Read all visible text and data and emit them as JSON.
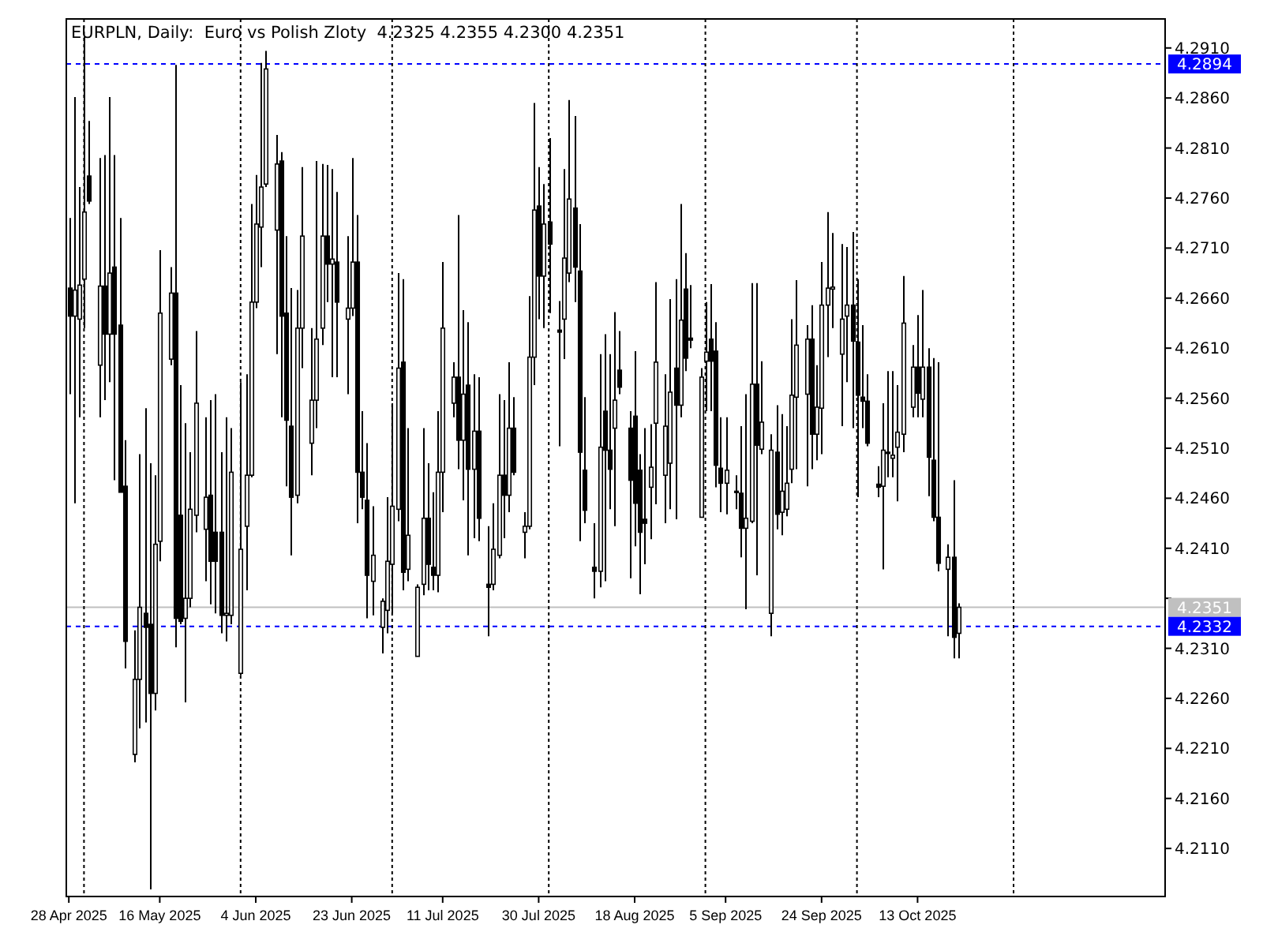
{
  "chart_data": {
    "type": "candlestick",
    "title": "EURPLN, Daily:  Euro vs Polish Zloty  4.2325 4.2355 4.2300 4.2351",
    "x": [
      "2025-04-28",
      "2025-04-29",
      "2025-04-30",
      "2025-05-01",
      "2025-05-02",
      "2025-05-04",
      "2025-05-05",
      "2025-05-06",
      "2025-05-07",
      "2025-05-08",
      "2025-05-09",
      "2025-05-11",
      "2025-05-12",
      "2025-05-13",
      "2025-05-14",
      "2025-05-15",
      "2025-05-16",
      "2025-05-18",
      "2025-05-19",
      "2025-05-20",
      "2025-05-21",
      "2025-05-22",
      "2025-05-23",
      "2025-05-25",
      "2025-05-26",
      "2025-05-27",
      "2025-05-28",
      "2025-05-29",
      "2025-05-30",
      "2025-06-01",
      "2025-06-02",
      "2025-06-03",
      "2025-06-04",
      "2025-06-05",
      "2025-06-06",
      "2025-06-08",
      "2025-06-09",
      "2025-06-10",
      "2025-06-11",
      "2025-06-12",
      "2025-06-13",
      "2025-06-15",
      "2025-06-16",
      "2025-06-17",
      "2025-06-18",
      "2025-06-19",
      "2025-06-20",
      "2025-06-22",
      "2025-06-23",
      "2025-06-24",
      "2025-06-25",
      "2025-06-26",
      "2025-06-27",
      "2025-06-29",
      "2025-06-30",
      "2025-07-01",
      "2025-07-02",
      "2025-07-03",
      "2025-07-04",
      "2025-07-06",
      "2025-07-07",
      "2025-07-08",
      "2025-07-09",
      "2025-07-10",
      "2025-07-11",
      "2025-07-13",
      "2025-07-14",
      "2025-07-15",
      "2025-07-16",
      "2025-07-17",
      "2025-07-18",
      "2025-07-20",
      "2025-07-21",
      "2025-07-22",
      "2025-07-23",
      "2025-07-24",
      "2025-07-25",
      "2025-07-27",
      "2025-07-28",
      "2025-07-29",
      "2025-07-30",
      "2025-07-31",
      "2025-08-01",
      "2025-08-03",
      "2025-08-04",
      "2025-08-05",
      "2025-08-06",
      "2025-08-07",
      "2025-08-08",
      "2025-08-10",
      "2025-08-11",
      "2025-08-12",
      "2025-08-13",
      "2025-08-14",
      "2025-08-15",
      "2025-08-17",
      "2025-08-18",
      "2025-08-19",
      "2025-08-20",
      "2025-08-21",
      "2025-08-22",
      "2025-08-24",
      "2025-08-25",
      "2025-08-26",
      "2025-08-27",
      "2025-08-28",
      "2025-08-29",
      "2025-08-31",
      "2025-09-01",
      "2025-09-02",
      "2025-09-03",
      "2025-09-04",
      "2025-09-05",
      "2025-09-07",
      "2025-09-08",
      "2025-09-09",
      "2025-09-10",
      "2025-09-11",
      "2025-09-12",
      "2025-09-14",
      "2025-09-15",
      "2025-09-16",
      "2025-09-17",
      "2025-09-18",
      "2025-09-19",
      "2025-09-21",
      "2025-09-22",
      "2025-09-23",
      "2025-09-24",
      "2025-09-25",
      "2025-09-26",
      "2025-09-28",
      "2025-09-29",
      "2025-09-30",
      "2025-10-01",
      "2025-10-02",
      "2025-10-03",
      "2025-10-05",
      "2025-10-06",
      "2025-10-07",
      "2025-10-08",
      "2025-10-09",
      "2025-10-10",
      "2025-10-12",
      "2025-10-13",
      "2025-10-14",
      "2025-10-15",
      "2025-10-16",
      "2025-10-17",
      "2025-10-19",
      "2025-10-20",
      "2025-10-21"
    ],
    "ohlc": [
      [
        4.267,
        4.274,
        4.2564,
        4.2642
      ],
      [
        4.2642,
        4.2861,
        4.2455,
        4.2668
      ],
      [
        4.2639,
        4.2771,
        4.2541,
        4.2673
      ],
      [
        4.2679,
        4.2921,
        4.263,
        4.2746
      ],
      [
        4.2782,
        4.2837,
        4.2754,
        4.2757
      ],
      [
        4.2593,
        4.28,
        4.2541,
        4.2672
      ],
      [
        4.2672,
        4.2803,
        4.2558,
        4.2624
      ],
      [
        4.2624,
        4.2861,
        4.2576,
        4.2685
      ],
      [
        4.2691,
        4.2803,
        4.2478,
        4.2624
      ],
      [
        4.2633,
        4.274,
        4.2466,
        4.2466
      ],
      [
        4.2472,
        4.2518,
        4.229,
        4.2317
      ],
      [
        4.2204,
        4.2328,
        4.2196,
        4.2279
      ],
      [
        4.2279,
        4.2504,
        4.223,
        4.2351
      ],
      [
        4.2345,
        4.255,
        4.2236,
        4.2331
      ],
      [
        4.2334,
        4.2495,
        4.2069,
        4.2265
      ],
      [
        4.2265,
        4.2483,
        4.2248,
        4.2414
      ],
      [
        4.2417,
        4.2708,
        4.2397,
        4.2645
      ],
      [
        4.2599,
        4.2691,
        4.2593,
        4.2665
      ],
      [
        4.2665,
        4.2893,
        4.2311,
        4.234
      ],
      [
        4.2443,
        4.2573,
        4.2334,
        4.2337
      ],
      [
        4.234,
        4.2535,
        4.2256,
        4.236
      ],
      [
        4.236,
        4.2506,
        4.2351,
        4.2449
      ],
      [
        4.2443,
        4.2627,
        4.2426,
        4.2555
      ],
      [
        4.2429,
        4.2541,
        4.2377,
        4.2461
      ],
      [
        4.2463,
        4.2558,
        4.2354,
        4.2397
      ],
      [
        4.2426,
        4.2564,
        4.2345,
        4.2397
      ],
      [
        4.2426,
        4.2506,
        4.2325,
        4.2343
      ],
      [
        4.2343,
        4.2541,
        4.2317,
        4.2345
      ],
      [
        4.2343,
        4.253,
        4.2334,
        4.2486
      ],
      [
        4.2285,
        4.2576,
        4.2283,
        4.2409
      ],
      [
        4.2432,
        4.2584,
        4.2368,
        4.2483
      ],
      [
        4.2483,
        4.2754,
        4.2481,
        4.2656
      ],
      [
        4.2656,
        4.2783,
        4.265,
        4.2734
      ],
      [
        4.2731,
        4.2895,
        4.2691,
        4.2771
      ],
      [
        4.2774,
        4.2907,
        4.2771,
        4.2889
      ],
      [
        4.2728,
        4.2823,
        4.2604,
        4.2794
      ],
      [
        4.2797,
        4.2806,
        4.2541,
        4.2642
      ],
      [
        4.2645,
        4.2722,
        4.2472,
        4.2538
      ],
      [
        4.2532,
        4.267,
        4.2403,
        4.2461
      ],
      [
        4.2463,
        4.2668,
        4.2455,
        4.263
      ],
      [
        4.263,
        4.2791,
        4.259,
        4.2722
      ],
      [
        4.2515,
        4.263,
        4.2483,
        4.2558
      ],
      [
        4.2558,
        4.2797,
        4.253,
        4.2619
      ],
      [
        4.263,
        4.2794,
        4.2613,
        4.2722
      ],
      [
        4.2722,
        4.2793,
        4.2656,
        4.2694
      ],
      [
        4.2694,
        4.2789,
        4.2581,
        4.2699
      ],
      [
        4.2696,
        4.2766,
        4.2581,
        4.2656
      ],
      [
        4.2639,
        4.2722,
        4.2564,
        4.265
      ],
      [
        4.265,
        4.28,
        4.2642,
        4.2696
      ],
      [
        4.2696,
        4.2743,
        4.2435,
        4.2486
      ],
      [
        4.2486,
        4.2547,
        4.2449,
        4.2461
      ],
      [
        4.2458,
        4.2515,
        4.234,
        4.2383
      ],
      [
        4.2377,
        4.2452,
        4.2343,
        4.2403
      ],
      [
        4.2331,
        4.236,
        4.2305,
        4.2357
      ],
      [
        4.2348,
        4.2461,
        4.2325,
        4.2397
      ],
      [
        4.2394,
        4.2555,
        4.2345,
        4.2452
      ],
      [
        4.2449,
        4.2685,
        4.2437,
        4.259
      ],
      [
        4.2596,
        4.2679,
        4.2368,
        4.2386
      ],
      [
        4.2389,
        4.253,
        4.2377,
        4.2423
      ],
      [
        4.2302,
        4.2374,
        4.2302,
        4.2371
      ],
      [
        4.2374,
        4.253,
        4.2363,
        4.244
      ],
      [
        4.244,
        4.2495,
        4.2368,
        4.2394
      ],
      [
        4.2391,
        4.2466,
        4.2368,
        4.2383
      ],
      [
        4.2383,
        4.2547,
        4.2366,
        4.2486
      ],
      [
        4.2486,
        4.2696,
        4.2446,
        4.263
      ],
      [
        4.2555,
        4.2596,
        4.2541,
        4.2581
      ],
      [
        4.2581,
        4.2743,
        4.2489,
        4.2518
      ],
      [
        4.2518,
        4.2648,
        4.2458,
        4.2564
      ],
      [
        4.2573,
        4.2636,
        4.2403,
        4.2489
      ],
      [
        4.2489,
        4.2584,
        4.242,
        4.2527
      ],
      [
        4.2527,
        4.2581,
        4.2417,
        4.244
      ],
      [
        4.2374,
        4.2432,
        4.2322,
        4.2371
      ],
      [
        4.2374,
        4.2455,
        4.2368,
        4.2409
      ],
      [
        4.2403,
        4.2564,
        4.24,
        4.2483
      ],
      [
        4.2483,
        4.2558,
        4.242,
        4.2463
      ],
      [
        4.2463,
        4.2596,
        4.2446,
        4.253
      ],
      [
        4.253,
        4.2561,
        4.2483,
        4.2486
      ],
      [
        4.2426,
        4.2446,
        4.24,
        4.2432
      ],
      [
        4.2432,
        4.2662,
        4.2429,
        4.2601
      ],
      [
        4.2601,
        4.2855,
        4.2573,
        4.2748
      ],
      [
        4.2752,
        4.2791,
        4.2639,
        4.2682
      ],
      [
        4.2682,
        4.2774,
        4.263,
        4.2734
      ],
      [
        4.2736,
        4.282,
        4.2645,
        4.2714
      ],
      [
        4.2628,
        4.2657,
        4.2512,
        4.2626
      ],
      [
        4.2639,
        4.2789,
        4.2599,
        4.27
      ],
      [
        4.2685,
        4.2858,
        4.2676,
        4.2759
      ],
      [
        4.275,
        4.2842,
        4.2656,
        4.2691
      ],
      [
        4.2687,
        4.2734,
        4.2417,
        4.2506
      ],
      [
        4.2488,
        4.2561,
        4.2435,
        4.2448
      ],
      [
        4.2391,
        4.2435,
        4.236,
        4.2387
      ],
      [
        4.2387,
        4.2604,
        4.2371,
        4.2511
      ],
      [
        4.2547,
        4.2624,
        4.2377,
        4.2508
      ],
      [
        4.2508,
        4.2604,
        4.2449,
        4.2489
      ],
      [
        4.253,
        4.2646,
        4.2432,
        4.2558
      ],
      [
        4.2588,
        4.2627,
        4.2564,
        4.2571
      ],
      [
        4.253,
        4.2547,
        4.238,
        4.2478
      ],
      [
        4.2542,
        4.2607,
        4.2412,
        4.2455
      ],
      [
        4.2488,
        4.2504,
        4.2364,
        4.2426
      ],
      [
        4.2439,
        4.253,
        4.2394,
        4.2435
      ],
      [
        4.2471,
        4.2534,
        4.2419,
        4.2491
      ],
      [
        4.2535,
        4.2676,
        4.2454,
        4.2596
      ],
      [
        4.2483,
        4.2584,
        4.2435,
        4.2532
      ],
      [
        4.2495,
        4.2659,
        4.2449,
        4.2566
      ],
      [
        4.259,
        4.2679,
        4.2439,
        4.2553
      ],
      [
        4.2553,
        4.2754,
        4.2541,
        4.2638
      ],
      [
        4.2669,
        4.2705,
        4.2587,
        4.26
      ],
      [
        4.262,
        4.2673,
        4.261,
        4.2618
      ],
      [
        4.2441,
        4.259,
        4.2441,
        4.2581
      ],
      [
        4.2597,
        4.2656,
        4.2547,
        4.2606
      ],
      [
        4.2619,
        4.2674,
        4.2547,
        4.2597
      ],
      [
        4.2607,
        4.2636,
        4.2471,
        4.2493
      ],
      [
        4.249,
        4.2541,
        4.2446,
        4.2475
      ],
      [
        4.2475,
        4.2541,
        4.2444,
        4.2488
      ],
      [
        4.2467,
        4.2483,
        4.2449,
        4.2466
      ],
      [
        4.2465,
        4.2532,
        4.2401,
        4.243
      ],
      [
        4.243,
        4.2564,
        4.2349,
        4.244
      ],
      [
        4.2437,
        4.2675,
        4.2435,
        4.2574
      ],
      [
        4.2574,
        4.2675,
        4.2383,
        4.2513
      ],
      [
        4.2509,
        4.2597,
        4.2504,
        4.2536
      ],
      [
        4.2345,
        4.2524,
        4.2322,
        4.2508
      ],
      [
        4.2506,
        4.2553,
        4.2429,
        4.2444
      ],
      [
        4.2446,
        4.2544,
        4.2423,
        4.2467
      ],
      [
        4.2449,
        4.2532,
        4.2442,
        4.2475
      ],
      [
        4.2489,
        4.2639,
        4.2475,
        4.2563
      ],
      [
        4.2561,
        4.2678,
        4.2489,
        4.2613
      ],
      [
        4.2564,
        4.2633,
        4.2472,
        4.2619
      ],
      [
        4.2619,
        4.2653,
        4.2489,
        4.2524
      ],
      [
        4.2524,
        4.2593,
        4.2498,
        4.2551
      ],
      [
        4.255,
        4.2696,
        4.2504,
        4.2653
      ],
      [
        4.2653,
        4.2746,
        4.2601,
        4.267
      ],
      [
        4.2669,
        4.2725,
        4.263,
        4.2671
      ],
      [
        4.2604,
        4.2714,
        4.2532,
        4.2639
      ],
      [
        4.2642,
        4.2711,
        4.2576,
        4.2653
      ],
      [
        4.2653,
        4.2726,
        4.253,
        4.2617
      ],
      [
        4.2616,
        4.2679,
        4.2461,
        4.2563
      ],
      [
        4.2561,
        4.2633,
        4.253,
        4.2557
      ],
      [
        4.2557,
        4.2584,
        4.2512,
        4.2515
      ],
      [
        4.2474,
        4.2492,
        4.2461,
        4.2471
      ],
      [
        4.2472,
        4.2555,
        4.2389,
        4.2508
      ],
      [
        4.2505,
        4.2587,
        4.2481,
        4.2506
      ],
      [
        4.25,
        4.2587,
        4.2481,
        4.2503
      ],
      [
        4.2511,
        4.2573,
        4.2457,
        4.2526
      ],
      [
        4.2524,
        4.2682,
        4.2506,
        4.2635
      ],
      [
        4.2551,
        4.2613,
        4.2541,
        4.2591
      ],
      [
        4.2591,
        4.2643,
        4.2541,
        4.2565
      ],
      [
        4.2559,
        4.2668,
        4.2541,
        4.2591
      ],
      [
        4.2591,
        4.261,
        4.2462,
        4.2501
      ],
      [
        4.2498,
        4.26,
        4.2437,
        4.2441
      ],
      [
        4.2441,
        4.2596,
        4.2387,
        4.2395
      ],
      [
        4.2389,
        4.2414,
        4.2322,
        4.2401
      ],
      [
        4.2401,
        4.2478,
        4.23,
        4.2321
      ],
      [
        4.2325,
        4.2355,
        4.23,
        4.2351
      ]
    ],
    "xlim": [
      "2025-04-27T12:00",
      "2025-12-01"
    ],
    "xticks": [
      {
        "value": "2025-04-28",
        "label": "28 Apr 2025"
      },
      {
        "value": "2025-05-16",
        "label": "16 May 2025"
      },
      {
        "value": "2025-06-04",
        "label": "4 Jun 2025"
      },
      {
        "value": "2025-06-23",
        "label": "23 Jun 2025"
      },
      {
        "value": "2025-07-11",
        "label": "11 Jul 2025"
      },
      {
        "value": "2025-07-30",
        "label": "30 Jul 2025"
      },
      {
        "value": "2025-08-18",
        "label": "18 Aug 2025"
      },
      {
        "value": "2025-09-05",
        "label": "5 Sep 2025"
      },
      {
        "value": "2025-09-24",
        "label": "24 Sep 2025"
      },
      {
        "value": "2025-10-13",
        "label": "13 Oct 2025"
      }
    ],
    "ylim": [
      4.2062,
      4.2939
    ],
    "yticks": [
      {
        "value": 4.211,
        "label": "4.2110"
      },
      {
        "value": 4.216,
        "label": "4.2160"
      },
      {
        "value": 4.221,
        "label": "4.2210"
      },
      {
        "value": 4.226,
        "label": "4.2260"
      },
      {
        "value": 4.231,
        "label": "4.2310"
      },
      {
        "value": 4.236,
        "label": null
      },
      {
        "value": 4.241,
        "label": "4.2410"
      },
      {
        "value": 4.246,
        "label": "4.2460"
      },
      {
        "value": 4.251,
        "label": "4.2510"
      },
      {
        "value": 4.256,
        "label": "4.2560"
      },
      {
        "value": 4.261,
        "label": "4.2610"
      },
      {
        "value": 4.266,
        "label": "4.2660"
      },
      {
        "value": 4.271,
        "label": "4.2710"
      },
      {
        "value": 4.276,
        "label": "4.2760"
      },
      {
        "value": 4.281,
        "label": "4.2810"
      },
      {
        "value": 4.286,
        "label": "4.2860"
      },
      {
        "value": 4.291,
        "label": "4.2910"
      }
    ],
    "ref_lines": [
      {
        "axis": "y",
        "value": 4.2894,
        "label": "4.2894",
        "color": "#0000ff",
        "line_style": "dashed"
      },
      {
        "axis": "y",
        "value": 4.2351,
        "label": "4.2351",
        "color": "#c0c0c0",
        "line_style": "solid"
      },
      {
        "axis": "y",
        "value": 4.2332,
        "label": "4.2332",
        "color": "#0000ff",
        "line_style": "dashed"
      },
      {
        "axis": "x",
        "value": "2025-05-01",
        "color": "#000000",
        "line_style": "dotted"
      },
      {
        "axis": "x",
        "value": "2025-06-01",
        "color": "#000000",
        "line_style": "dotted"
      },
      {
        "axis": "x",
        "value": "2025-07-01",
        "color": "#000000",
        "line_style": "dotted"
      },
      {
        "axis": "x",
        "value": "2025-08-01",
        "color": "#000000",
        "line_style": "dotted"
      },
      {
        "axis": "x",
        "value": "2025-09-01",
        "color": "#000000",
        "line_style": "dotted"
      },
      {
        "axis": "x",
        "value": "2025-10-01",
        "color": "#000000",
        "line_style": "dotted"
      },
      {
        "axis": "x",
        "value": "2025-11-01",
        "color": "#000000",
        "line_style": "dotted"
      }
    ]
  }
}
